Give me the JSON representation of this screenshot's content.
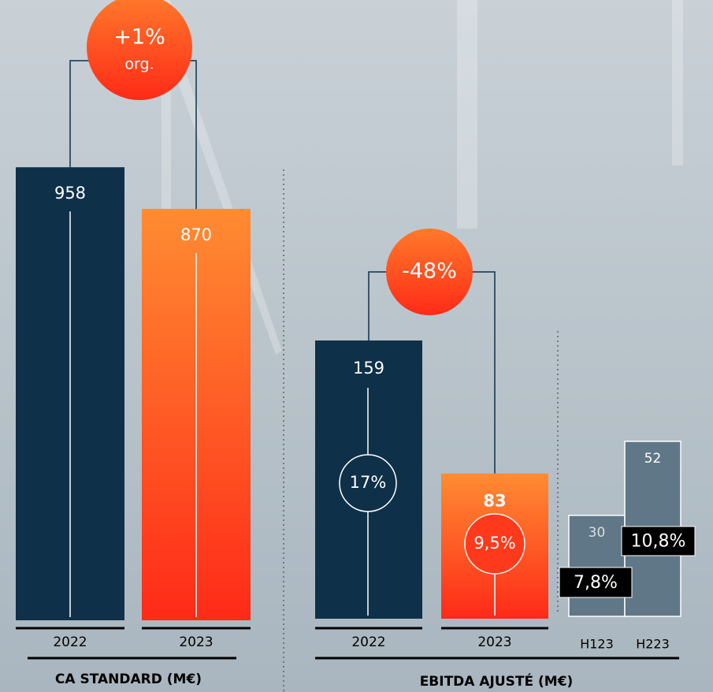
{
  "chart_data": [
    {
      "type": "bar",
      "title": "CA STANDARD (M€)",
      "categories": [
        "2022",
        "2023"
      ],
      "values": [
        958,
        870
      ],
      "colors": [
        "#0f3049",
        "orange-gradient"
      ],
      "change_label": "+1%",
      "change_note": "org."
    },
    {
      "type": "bar",
      "title": "EBITDA AJUSTÉ (M€)",
      "categories": [
        "2022",
        "2023"
      ],
      "values": [
        159,
        83
      ],
      "colors": [
        "#0f3049",
        "orange-gradient"
      ],
      "change_label": "-48%",
      "margins": [
        17,
        9.5
      ],
      "margin_labels": [
        "17%",
        "9,5%"
      ]
    },
    {
      "type": "bar",
      "categories": [
        "H123",
        "H223"
      ],
      "values": [
        30,
        52
      ],
      "colors": [
        "#5f7787",
        "#5f7787"
      ],
      "margins": [
        7.8,
        10.8
      ],
      "margin_labels": [
        "7,8%",
        "10,8%"
      ]
    }
  ]
}
